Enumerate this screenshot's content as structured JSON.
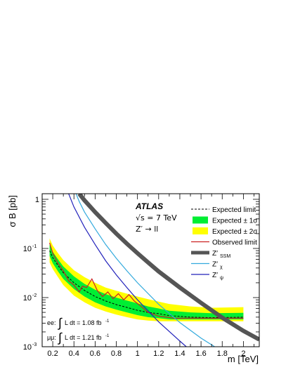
{
  "chart_data": {
    "type": "line",
    "title": "",
    "experiment_label": "ATLAS",
    "energy": {
      "prefix": "√s = 7 TeV"
    },
    "process": "Z′ → ll",
    "xlabel": "m [TeV]",
    "ylabel": "σ B [pb]",
    "xlim": [
      0.1,
      2.15
    ],
    "ylim_log": [
      0.001,
      1.3
    ],
    "y_scale": "log",
    "grid": false,
    "legend_position": "top-right",
    "x_ticks": [
      {
        "v": 0.2,
        "label": "0.2"
      },
      {
        "v": 0.4,
        "label": "0.4"
      },
      {
        "v": 0.6,
        "label": "0.6"
      },
      {
        "v": 0.8,
        "label": "0.8"
      },
      {
        "v": 1.0,
        "label": "1"
      },
      {
        "v": 1.2,
        "label": "1.2"
      },
      {
        "v": 1.4,
        "label": "1.4"
      },
      {
        "v": 1.6,
        "label": "1.6"
      },
      {
        "v": 1.8,
        "label": "1.8"
      },
      {
        "v": 2.0,
        "label": "2"
      }
    ],
    "y_ticks": [
      {
        "v": 1,
        "base": "1",
        "exp": ""
      },
      {
        "v": 0.1,
        "base": "10",
        "exp": "-1"
      },
      {
        "v": 0.01,
        "base": "10",
        "exp": "-2"
      },
      {
        "v": 0.001,
        "base": "10",
        "exp": "-3"
      }
    ],
    "luminosity": [
      {
        "channel": "ee:",
        "text": "L dt = 1.08 fb",
        "exp": "-1"
      },
      {
        "channel": "μμ:",
        "text": "L dt = 1.21 fb",
        "exp": "-1"
      }
    ],
    "legend": [
      {
        "key": "expected",
        "label": "Expected limit",
        "style": "dashed"
      },
      {
        "key": "band1",
        "label": "Expected ± 1σ",
        "style": "fill-green"
      },
      {
        "key": "band2",
        "label": "Expected ± 2σ",
        "style": "fill-yellow"
      },
      {
        "key": "observed",
        "label": "Observed limit",
        "style": "line-red"
      },
      {
        "key": "ssm",
        "label": "Z′",
        "sub": "SSM",
        "style": "thick-gray"
      },
      {
        "key": "chi",
        "label": "Z′",
        "sub": "χ",
        "style": "line-cyan"
      },
      {
        "key": "psi",
        "label": "Z′",
        "sub": "ψ",
        "style": "line-blue"
      }
    ],
    "colors": {
      "band2": "#ffff00",
      "band1": "#00ee33",
      "expected": "#000000",
      "observed": "#cc2222",
      "ssm": "#555555",
      "chi": "#33aadd",
      "psi": "#2222bb"
    },
    "series": [
      {
        "name": "Expected limit",
        "x": [
          0.17,
          0.2,
          0.25,
          0.3,
          0.4,
          0.5,
          0.6,
          0.7,
          0.8,
          0.9,
          1.0,
          1.1,
          1.2,
          1.3,
          1.5,
          1.7,
          2.0
        ],
        "y": [
          0.09,
          0.065,
          0.045,
          0.032,
          0.02,
          0.014,
          0.0105,
          0.0085,
          0.0072,
          0.0063,
          0.0055,
          0.005,
          0.0047,
          0.0043,
          0.004,
          0.0039,
          0.004
        ]
      },
      {
        "name": "Expected ± 1σ",
        "x": [
          0.17,
          0.2,
          0.25,
          0.3,
          0.4,
          0.5,
          0.6,
          0.7,
          0.8,
          0.9,
          1.0,
          1.1,
          1.2,
          1.3,
          1.5,
          1.7,
          2.0
        ],
        "y_low": [
          0.07,
          0.05,
          0.034,
          0.024,
          0.015,
          0.0105,
          0.008,
          0.0066,
          0.0057,
          0.005,
          0.0044,
          0.004,
          0.0038,
          0.0036,
          0.0036,
          0.0036,
          0.0036
        ],
        "y_high": [
          0.12,
          0.085,
          0.06,
          0.043,
          0.027,
          0.019,
          0.0145,
          0.0118,
          0.01,
          0.0087,
          0.0076,
          0.0066,
          0.006,
          0.0054,
          0.005,
          0.0048,
          0.0049
        ]
      },
      {
        "name": "Expected ± 2σ",
        "x": [
          0.17,
          0.2,
          0.25,
          0.3,
          0.4,
          0.5,
          0.6,
          0.7,
          0.8,
          0.9,
          1.0,
          1.1,
          1.2,
          1.3,
          1.5,
          1.7,
          2.0
        ],
        "y_low": [
          0.052,
          0.038,
          0.026,
          0.018,
          0.011,
          0.008,
          0.0062,
          0.0052,
          0.0045,
          0.004,
          0.0036,
          0.0034,
          0.0033,
          0.0033,
          0.0033,
          0.0033,
          0.0033
        ],
        "y_high": [
          0.16,
          0.115,
          0.08,
          0.058,
          0.036,
          0.026,
          0.02,
          0.016,
          0.0138,
          0.012,
          0.0105,
          0.0093,
          0.0083,
          0.0074,
          0.0066,
          0.0062,
          0.0064
        ]
      },
      {
        "name": "Observed limit",
        "x": [
          0.17,
          0.2,
          0.25,
          0.3,
          0.35,
          0.4,
          0.45,
          0.48,
          0.52,
          0.57,
          0.62,
          0.67,
          0.72,
          0.77,
          0.82,
          0.87,
          0.92,
          0.97,
          1.02,
          1.1,
          1.2,
          1.35,
          1.5,
          1.7,
          2.0
        ],
        "y": [
          0.13,
          0.08,
          0.05,
          0.035,
          0.022,
          0.018,
          0.013,
          0.017,
          0.016,
          0.024,
          0.014,
          0.0105,
          0.013,
          0.0095,
          0.012,
          0.009,
          0.0115,
          0.0085,
          0.007,
          0.005,
          0.0042,
          0.0038,
          0.0038,
          0.0038,
          0.0038
        ]
      },
      {
        "name": "Z′ SSM",
        "x": [
          0.45,
          0.5,
          0.6,
          0.7,
          0.8,
          0.9,
          1.0,
          1.1,
          1.2,
          1.4,
          1.6,
          1.8,
          2.0,
          2.15
        ],
        "y": [
          1.3,
          0.95,
          0.55,
          0.33,
          0.2,
          0.125,
          0.08,
          0.052,
          0.034,
          0.016,
          0.0078,
          0.0039,
          0.0021,
          0.0014
        ]
      },
      {
        "name": "Z′ χ",
        "x": [
          0.42,
          0.45,
          0.5,
          0.6,
          0.7,
          0.8,
          0.9,
          1.0,
          1.2,
          1.4,
          1.6,
          1.8,
          1.95
        ],
        "y": [
          1.3,
          0.9,
          0.55,
          0.25,
          0.12,
          0.063,
          0.035,
          0.02,
          0.0073,
          0.0031,
          0.0015,
          0.0008,
          0.001
        ]
      },
      {
        "name": "Z′ ψ",
        "x": [
          0.35,
          0.4,
          0.5,
          0.6,
          0.7,
          0.8,
          0.9,
          1.0,
          1.2,
          1.4,
          1.6,
          1.78
        ],
        "y": [
          1.3,
          0.7,
          0.27,
          0.12,
          0.056,
          0.029,
          0.016,
          0.009,
          0.0032,
          0.0013,
          0.00055,
          0.001
        ]
      }
    ]
  }
}
